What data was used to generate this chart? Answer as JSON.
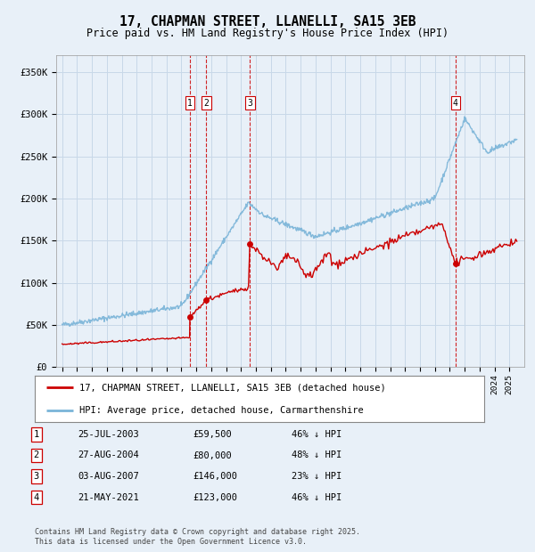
{
  "title": "17, CHAPMAN STREET, LLANELLI, SA15 3EB",
  "subtitle": "Price paid vs. HM Land Registry's House Price Index (HPI)",
  "background_color": "#e8f0f8",
  "plot_bg_color": "#e8f0f8",
  "hpi_color": "#7ab4d8",
  "price_color": "#cc0000",
  "vline_color": "#cc0000",
  "ylim": [
    0,
    370000
  ],
  "yticks": [
    0,
    50000,
    100000,
    150000,
    200000,
    250000,
    300000,
    350000
  ],
  "ytick_labels": [
    "£0",
    "£50K",
    "£100K",
    "£150K",
    "£200K",
    "£250K",
    "£300K",
    "£350K"
  ],
  "legend_label_price": "17, CHAPMAN STREET, LLANELLI, SA15 3EB (detached house)",
  "legend_label_hpi": "HPI: Average price, detached house, Carmarthenshire",
  "transactions": [
    {
      "num": 1,
      "date": "25-JUL-2003",
      "price": 59500,
      "pct": "46%",
      "year": 2003.57
    },
    {
      "num": 2,
      "date": "27-AUG-2004",
      "price": 80000,
      "pct": "48%",
      "year": 2004.66
    },
    {
      "num": 3,
      "date": "03-AUG-2007",
      "price": 146000,
      "pct": "23%",
      "year": 2007.59
    },
    {
      "num": 4,
      "date": "21-MAY-2021",
      "price": 123000,
      "pct": "46%",
      "year": 2021.39
    }
  ],
  "footnote": "Contains HM Land Registry data © Crown copyright and database right 2025.\nThis data is licensed under the Open Government Licence v3.0."
}
